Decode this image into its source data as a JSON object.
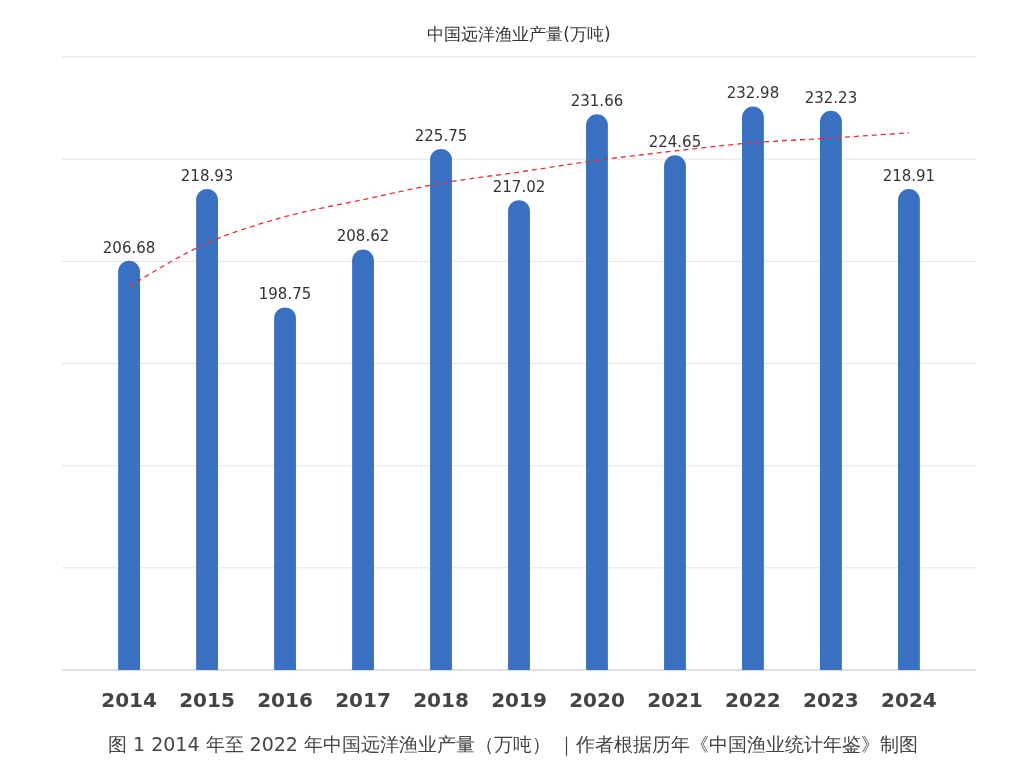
{
  "chart_data": {
    "type": "bar",
    "title": "中国远洋渔业产量(万吨)",
    "categories": [
      "2014",
      "2015",
      "2016",
      "2017",
      "2018",
      "2019",
      "2020",
      "2021",
      "2022",
      "2023",
      "2024"
    ],
    "series": [
      {
        "color": "#3a70c1",
        "values": [
          206.68,
          218.93,
          198.75,
          208.62,
          225.75,
          217.02,
          231.66,
          224.65,
          232.98,
          232.23,
          218.91
        ],
        "value_labels": [
          "206.68",
          "218.93",
          "198.75",
          "208.62",
          "225.75",
          "217.02",
          "231.66",
          "224.65",
          "232.98",
          "232.23",
          "218.91"
        ]
      },
      {
        "type": "line",
        "color": "#e0303a",
        "line_style": "dashed",
        "marker": "none",
        "values": [
          202.3,
          209.7,
          214.2,
          217.1,
          219.9,
          221.8,
          223.8,
          225.4,
          226.8,
          227.6,
          228.5
        ]
      }
    ],
    "ylim": [
      137,
      241.4
    ],
    "yticks": [
      {
        "value": 137,
        "label": null
      },
      {
        "value": 154.4,
        "label": null
      },
      {
        "value": 171.8,
        "label": null
      },
      {
        "value": 189.2,
        "label": null
      },
      {
        "value": 206.6,
        "label": null
      },
      {
        "value": 224,
        "label": null
      },
      {
        "value": 241.4,
        "label": null
      }
    ],
    "grid": "y",
    "tick_labels": "x",
    "annotations": [
      "图 1 2014 年至 2022 年中国远洋渔业产量（万吨） ｜作者根据历年《中国渔业统计年鉴》制图"
    ]
  }
}
